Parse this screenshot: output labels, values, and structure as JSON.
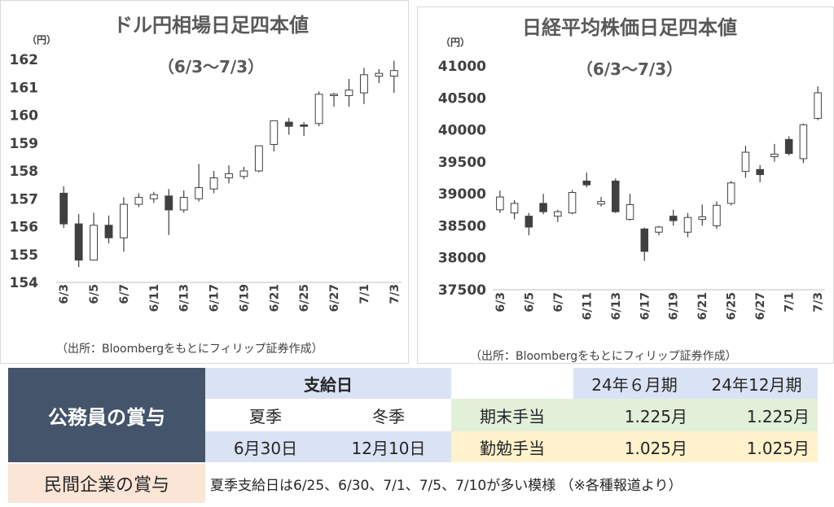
{
  "charts": [
    {
      "title": "ドル円相場日足四本値",
      "subtitle": "（6/3～7/3）",
      "unit": "（円）",
      "source": "（出所：Bloombergをもとにフィリップ証券作成）"
    },
    {
      "title": "日経平均株価日足四本値",
      "subtitle": "（6/3～7/3）",
      "unit": "（円）",
      "source": "（出所：Bloombergをもとにフィリップ証券作成）"
    }
  ],
  "chart_data": [
    {
      "type": "candlestick",
      "title": "ドル円相場日足四本値",
      "subtitle": "（6/3～7/3）",
      "ylabel": "（円）",
      "ylim": [
        154,
        162
      ],
      "yticks": [
        154,
        155,
        156,
        157,
        158,
        159,
        160,
        161,
        162
      ],
      "xtick_labels": [
        "6/3",
        "6/5",
        "6/7",
        "6/11",
        "6/13",
        "6/17",
        "6/19",
        "6/21",
        "6/25",
        "6/27",
        "7/1",
        "7/3"
      ],
      "grid": false,
      "up_color": "#ffffff",
      "down_color": "#404040",
      "candles": [
        {
          "date": "6/3",
          "open": 157.2,
          "high": 157.45,
          "low": 155.95,
          "close": 156.1
        },
        {
          "date": "6/4",
          "open": 156.1,
          "high": 156.45,
          "low": 154.55,
          "close": 154.8
        },
        {
          "date": "6/5",
          "open": 154.8,
          "high": 156.5,
          "low": 154.8,
          "close": 156.05
        },
        {
          "date": "6/6",
          "open": 156.05,
          "high": 156.4,
          "low": 155.4,
          "close": 155.6
        },
        {
          "date": "6/7",
          "open": 155.6,
          "high": 157.05,
          "low": 155.1,
          "close": 156.8
        },
        {
          "date": "6/10",
          "open": 156.8,
          "high": 157.2,
          "low": 156.7,
          "close": 157.05
        },
        {
          "date": "6/11",
          "open": 157.0,
          "high": 157.25,
          "low": 156.85,
          "close": 157.15
        },
        {
          "date": "6/12",
          "open": 157.1,
          "high": 157.35,
          "low": 155.7,
          "close": 156.6
        },
        {
          "date": "6/13",
          "open": 156.6,
          "high": 157.3,
          "low": 156.5,
          "close": 157.05
        },
        {
          "date": "6/14",
          "open": 157.0,
          "high": 158.25,
          "low": 156.9,
          "close": 157.4
        },
        {
          "date": "6/17",
          "open": 157.35,
          "high": 158.0,
          "low": 157.2,
          "close": 157.75
        },
        {
          "date": "6/18",
          "open": 157.75,
          "high": 158.2,
          "low": 157.55,
          "close": 157.9
        },
        {
          "date": "6/19",
          "open": 157.8,
          "high": 158.15,
          "low": 157.7,
          "close": 158.0
        },
        {
          "date": "6/20",
          "open": 158.0,
          "high": 158.9,
          "low": 157.95,
          "close": 158.9
        },
        {
          "date": "6/21",
          "open": 158.95,
          "high": 159.8,
          "low": 158.7,
          "close": 159.8
        },
        {
          "date": "6/24",
          "open": 159.75,
          "high": 159.9,
          "low": 159.3,
          "close": 159.6
        },
        {
          "date": "6/25",
          "open": 159.65,
          "high": 159.75,
          "low": 159.25,
          "close": 159.6
        },
        {
          "date": "6/26",
          "open": 159.7,
          "high": 160.85,
          "low": 159.6,
          "close": 160.75
        },
        {
          "date": "6/27",
          "open": 160.7,
          "high": 160.8,
          "low": 160.3,
          "close": 160.75
        },
        {
          "date": "6/28",
          "open": 160.7,
          "high": 161.3,
          "low": 160.3,
          "close": 160.9
        },
        {
          "date": "7/1",
          "open": 160.8,
          "high": 161.7,
          "low": 160.4,
          "close": 161.45
        },
        {
          "date": "7/2",
          "open": 161.4,
          "high": 161.65,
          "low": 161.15,
          "close": 161.5
        },
        {
          "date": "7/3",
          "open": 161.4,
          "high": 161.95,
          "low": 160.8,
          "close": 161.6
        }
      ]
    },
    {
      "type": "candlestick",
      "title": "日経平均株価日足四本値",
      "subtitle": "（6/3～7/3）",
      "ylabel": "（円）",
      "ylim": [
        37500,
        41000
      ],
      "yticks": [
        37500,
        38000,
        38500,
        39000,
        39500,
        40000,
        40500,
        41000
      ],
      "xtick_labels": [
        "6/3",
        "6/5",
        "6/7",
        "6/11",
        "6/13",
        "6/17",
        "6/19",
        "6/21",
        "6/25",
        "6/27",
        "7/1",
        "7/3"
      ],
      "grid": false,
      "up_color": "#ffffff",
      "down_color": "#404040",
      "candles": [
        {
          "date": "6/3",
          "open": 38750,
          "high": 39050,
          "low": 38700,
          "close": 38950
        },
        {
          "date": "6/4",
          "open": 38700,
          "high": 38900,
          "low": 38600,
          "close": 38850
        },
        {
          "date": "6/5",
          "open": 38650,
          "high": 38700,
          "low": 38350,
          "close": 38480
        },
        {
          "date": "6/6",
          "open": 38850,
          "high": 39000,
          "low": 38680,
          "close": 38720
        },
        {
          "date": "6/7",
          "open": 38650,
          "high": 38750,
          "low": 38560,
          "close": 38720
        },
        {
          "date": "6/10",
          "open": 38700,
          "high": 39060,
          "low": 38680,
          "close": 39020
        },
        {
          "date": "6/11",
          "open": 39200,
          "high": 39330,
          "low": 39100,
          "close": 39140
        },
        {
          "date": "6/12",
          "open": 38840,
          "high": 38950,
          "low": 38800,
          "close": 38880
        },
        {
          "date": "6/13",
          "open": 39200,
          "high": 39240,
          "low": 38700,
          "close": 38720
        },
        {
          "date": "6/14",
          "open": 38600,
          "high": 39000,
          "low": 38580,
          "close": 38830
        },
        {
          "date": "6/17",
          "open": 38450,
          "high": 38470,
          "low": 37950,
          "close": 38100
        },
        {
          "date": "6/18",
          "open": 38400,
          "high": 38500,
          "low": 38350,
          "close": 38480
        },
        {
          "date": "6/19",
          "open": 38650,
          "high": 38750,
          "low": 38500,
          "close": 38580
        },
        {
          "date": "6/20",
          "open": 38400,
          "high": 38700,
          "low": 38320,
          "close": 38630
        },
        {
          "date": "6/21",
          "open": 38600,
          "high": 38830,
          "low": 38500,
          "close": 38640
        },
        {
          "date": "6/24",
          "open": 38500,
          "high": 38880,
          "low": 38450,
          "close": 38820
        },
        {
          "date": "6/25",
          "open": 38850,
          "high": 39200,
          "low": 38820,
          "close": 39170
        },
        {
          "date": "6/26",
          "open": 39350,
          "high": 39750,
          "low": 39250,
          "close": 39650
        },
        {
          "date": "6/27",
          "open": 39380,
          "high": 39450,
          "low": 39180,
          "close": 39300
        },
        {
          "date": "6/28",
          "open": 39580,
          "high": 39780,
          "low": 39500,
          "close": 39620
        },
        {
          "date": "7/1",
          "open": 39850,
          "high": 39900,
          "low": 39600,
          "close": 39630
        },
        {
          "date": "7/2",
          "open": 39550,
          "high": 40100,
          "low": 39480,
          "close": 40080
        },
        {
          "date": "7/3",
          "open": 40180,
          "high": 40680,
          "low": 40150,
          "close": 40580
        }
      ]
    }
  ],
  "table": {
    "header": "公務員の賞与",
    "payday_header": "支給日",
    "summer_label": "夏季",
    "winter_label": "冬季",
    "summer_date": "6月30日",
    "winter_date": "12月10日",
    "col_jun": "24年６月期",
    "col_dec": "24年12月期",
    "rows": [
      {
        "label": "期末手当",
        "jun": "1.225月",
        "dec": "1.225月"
      },
      {
        "label": "勤勉手当",
        "jun": "1.025月",
        "dec": "1.025月"
      }
    ],
    "private_label": "民間企業の賞与",
    "private_text": "夏季支給日は6/25、6/30、7/1、7/5、7/10が多い模様 （※各種報道より）",
    "colors": {
      "navy": "#44546a",
      "blue_light": "#dae3f3",
      "green_light": "#e2f0d9",
      "yellow_light": "#fff2cc",
      "pink_light": "#fbe5d6"
    }
  }
}
